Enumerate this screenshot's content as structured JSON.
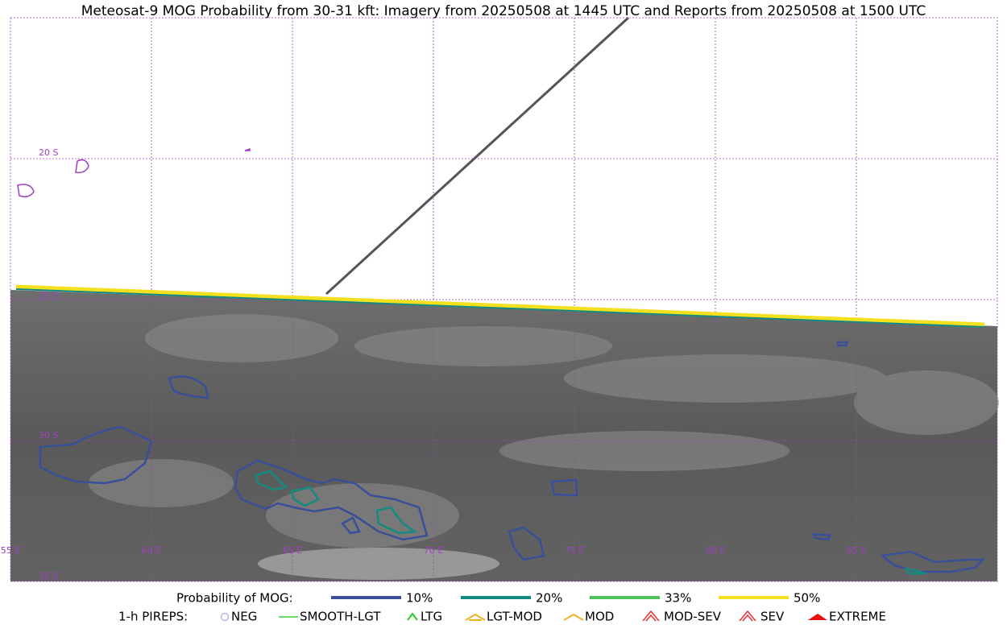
{
  "title": "Meteosat-9 MOG Probability from 30-31 kft: Imagery from 20250508 at 1445 UTC and Reports from 20250508 at 1500 UTC",
  "map": {
    "lat_labels": [
      "20 S",
      "25 S",
      "30 S",
      "35 S"
    ],
    "lon_labels": [
      "55 E",
      "60 E",
      "65 E",
      "70 E",
      "75 E",
      "80 E",
      "85 E"
    ]
  },
  "legend": {
    "mog": {
      "title": "Probability of MOG:",
      "items": [
        {
          "label": "10%",
          "color": "#3a4f9a"
        },
        {
          "label": "20%",
          "color": "#148a80"
        },
        {
          "label": "33%",
          "color": "#4cc35a"
        },
        {
          "label": "50%",
          "color": "#f5e020"
        }
      ]
    },
    "pireps": {
      "title": "1-h PIREPS:",
      "items": [
        {
          "label": "NEG",
          "color": "#b8b8f0"
        },
        {
          "label": "SMOOTH-LGT",
          "color": "#33cc33"
        },
        {
          "label": "LTG",
          "color": "#22cc22"
        },
        {
          "label": "LGT-MOD",
          "color": "#f0b020"
        },
        {
          "label": "MOD",
          "color": "#f0b020"
        },
        {
          "label": "MOD-SEV",
          "color": "#e83030"
        },
        {
          "label": "SEV",
          "color": "#e83030"
        },
        {
          "label": "EXTREME",
          "color": "#e81010"
        }
      ]
    }
  }
}
